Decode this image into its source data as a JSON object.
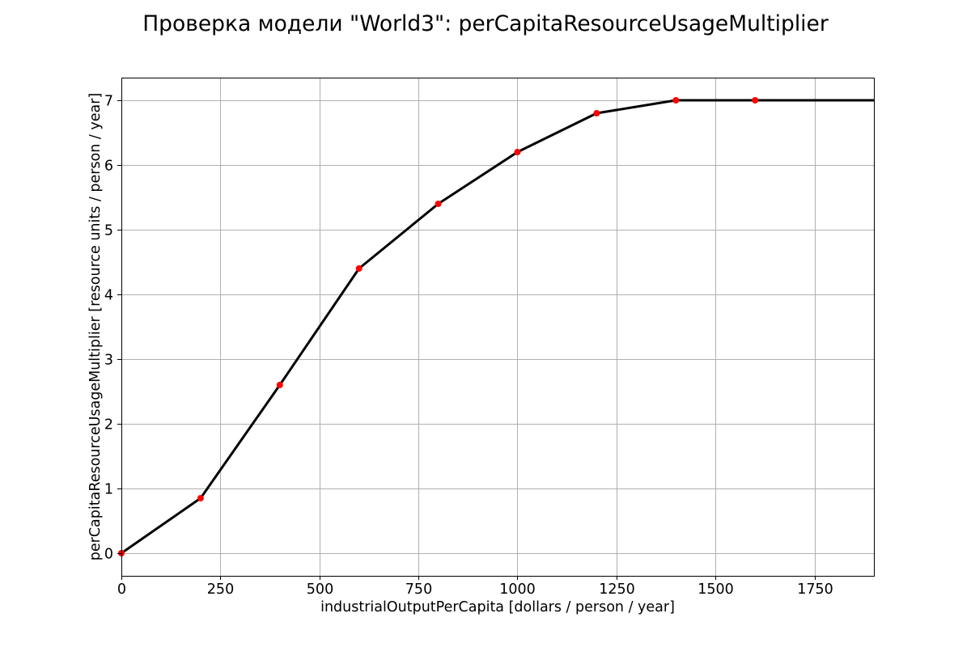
{
  "chart_data": {
    "type": "line",
    "title": "Проверка модели \"World3\": perCapitaResourceUsageMultiplier",
    "xlabel": "industrialOutputPerCapita [dollars / person / year]",
    "ylabel": "perCapitaResourceUsageMultiplier [resource units / person / year]",
    "xlim": [
      0,
      1900
    ],
    "ylim": [
      -0.35,
      7.35
    ],
    "xticks": [
      0,
      250,
      500,
      750,
      1000,
      1250,
      1500,
      1750
    ],
    "yticks": [
      0,
      1,
      2,
      3,
      4,
      5,
      6,
      7
    ],
    "grid": true,
    "series": [
      {
        "style": "line",
        "color": "#000000",
        "x": [
          0,
          200,
          400,
          600,
          800,
          1000,
          1200,
          1400,
          1600,
          1900
        ],
        "y": [
          0,
          0.85,
          2.6,
          4.4,
          5.4,
          6.2,
          6.8,
          7.0,
          7.0,
          7.0
        ]
      },
      {
        "style": "points",
        "color": "#ff0000",
        "x": [
          0,
          200,
          400,
          600,
          800,
          1000,
          1200,
          1400,
          1600
        ],
        "y": [
          0,
          0.85,
          2.6,
          4.4,
          5.4,
          6.2,
          6.8,
          7.0,
          7.0
        ]
      }
    ]
  }
}
